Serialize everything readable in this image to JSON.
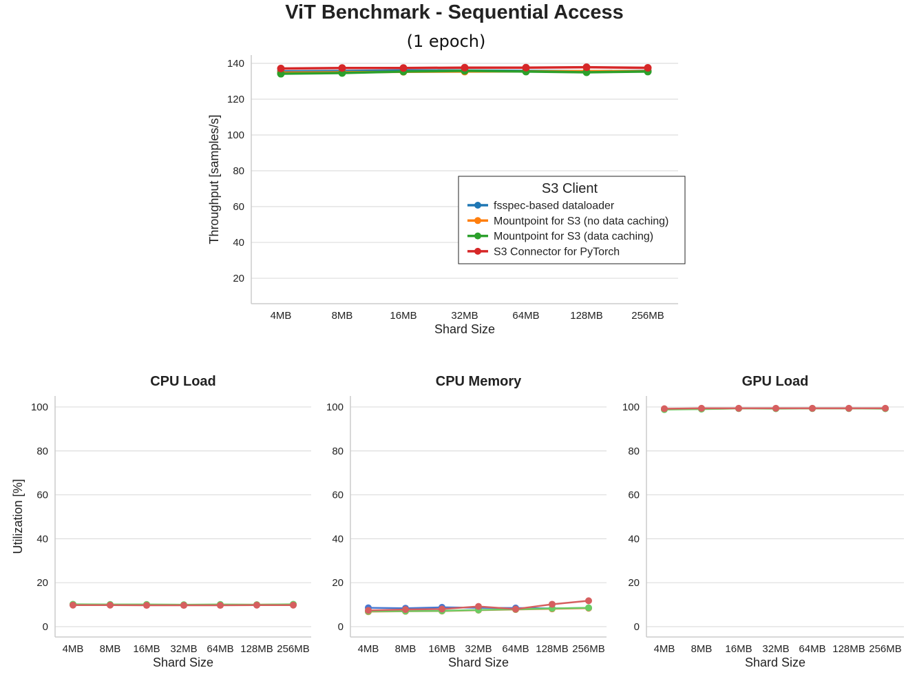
{
  "title": "ViT Benchmark - Sequential Access",
  "subtitle": "(1 epoch)",
  "legend": {
    "title": "S3 Client",
    "placement": "center-right",
    "entries": [
      "fsspec-based dataloader",
      "Mountpoint for S3 (no data caching)",
      "Mountpoint for S3 (data caching)",
      "S3 Connector for PyTorch"
    ]
  },
  "colors": {
    "top": [
      "#1f77b4",
      "#ff7f0e",
      "#2ca02c",
      "#d62728"
    ],
    "bottom": [
      "#4878d0",
      "#ee854a",
      "#6acc64",
      "#d65f5f"
    ],
    "grid": "#dddddd",
    "axis": "#cccccc"
  },
  "chart_data": [
    {
      "type": "line",
      "title": "",
      "xlabel": "Shard Size",
      "ylabel": "Throughput [samples/s]",
      "categories": [
        "4MB",
        "8MB",
        "16MB",
        "32MB",
        "64MB",
        "128MB",
        "256MB"
      ],
      "yticks": [
        20,
        40,
        60,
        80,
        100,
        120,
        140
      ],
      "ylim": [
        5.8,
        144.6
      ],
      "grid": "horizontal",
      "series": [
        {
          "name": "fsspec-based dataloader",
          "values": [
            135.5,
            135.7,
            136.0,
            136.0,
            135.8,
            135.6,
            135.8
          ]
        },
        {
          "name": "Mountpoint for S3 (no data caching)",
          "values": [
            134.8,
            135.0,
            135.3,
            135.4,
            135.5,
            135.6,
            135.6
          ]
        },
        {
          "name": "Mountpoint for S3 (data caching)",
          "values": [
            134.2,
            134.6,
            135.4,
            135.8,
            135.4,
            135.0,
            135.4
          ]
        },
        {
          "name": "S3 Connector for PyTorch",
          "values": [
            137.1,
            137.4,
            137.4,
            137.6,
            137.6,
            137.8,
            137.5
          ]
        }
      ]
    },
    {
      "type": "line",
      "title": "CPU Load",
      "xlabel": "Shard Size",
      "ylabel": "Utilization [%]",
      "categories": [
        "4MB",
        "8MB",
        "16MB",
        "32MB",
        "64MB",
        "128MB",
        "256MB"
      ],
      "yticks": [
        0,
        20,
        40,
        60,
        80,
        100
      ],
      "ylim": [
        -4.7,
        105
      ],
      "grid": "horizontal",
      "series": [
        {
          "name": "fsspec-based dataloader",
          "values": [
            10.0,
            9.9,
            9.9,
            9.8,
            9.9,
            9.9,
            10.0
          ]
        },
        {
          "name": "Mountpoint for S3 (no data caching)",
          "values": [
            10.1,
            10.0,
            10.0,
            9.9,
            10.0,
            10.0,
            10.1
          ]
        },
        {
          "name": "Mountpoint for S3 (data caching)",
          "values": [
            10.2,
            10.1,
            10.1,
            10.0,
            10.1,
            10.0,
            10.2
          ]
        },
        {
          "name": "S3 Connector for PyTorch",
          "values": [
            9.8,
            9.8,
            9.7,
            9.7,
            9.7,
            9.8,
            9.8
          ]
        }
      ]
    },
    {
      "type": "line",
      "title": "CPU Memory",
      "xlabel": "Shard Size",
      "ylabel": "",
      "categories": [
        "4MB",
        "8MB",
        "16MB",
        "32MB",
        "64MB",
        "128MB",
        "256MB"
      ],
      "yticks": [
        0,
        20,
        40,
        60,
        80,
        100
      ],
      "ylim": [
        -4.7,
        105
      ],
      "grid": "horizontal",
      "series": [
        {
          "name": "fsspec-based dataloader",
          "values": [
            8.6,
            8.4,
            8.8,
            8.6,
            8.5,
            8.3,
            8.5
          ]
        },
        {
          "name": "Mountpoint for S3 (no data caching)",
          "values": [
            6.8,
            7.0,
            7.1,
            7.5,
            7.8,
            8.1,
            8.4
          ]
        },
        {
          "name": "Mountpoint for S3 (data caching)",
          "values": [
            7.0,
            7.1,
            7.2,
            7.6,
            7.9,
            8.3,
            8.6
          ]
        },
        {
          "name": "S3 Connector for PyTorch",
          "values": [
            7.4,
            7.8,
            8.0,
            9.2,
            8.0,
            10.2,
            11.8
          ]
        }
      ]
    },
    {
      "type": "line",
      "title": "GPU Load",
      "xlabel": "Shard Size",
      "ylabel": "",
      "categories": [
        "4MB",
        "8MB",
        "16MB",
        "32MB",
        "64MB",
        "128MB",
        "256MB"
      ],
      "yticks": [
        0,
        20,
        40,
        60,
        80,
        100
      ],
      "ylim": [
        -4.7,
        105
      ],
      "grid": "horizontal",
      "series": [
        {
          "name": "fsspec-based dataloader",
          "values": [
            99.0,
            99.2,
            99.3,
            99.3,
            99.3,
            99.3,
            99.3
          ]
        },
        {
          "name": "Mountpoint for S3 (no data caching)",
          "values": [
            98.9,
            99.1,
            99.3,
            99.3,
            99.3,
            99.3,
            99.3
          ]
        },
        {
          "name": "Mountpoint for S3 (data caching)",
          "values": [
            98.8,
            99.0,
            99.3,
            99.2,
            99.3,
            99.3,
            99.2
          ]
        },
        {
          "name": "S3 Connector for PyTorch",
          "values": [
            99.2,
            99.4,
            99.4,
            99.4,
            99.4,
            99.4,
            99.4
          ]
        }
      ]
    }
  ]
}
